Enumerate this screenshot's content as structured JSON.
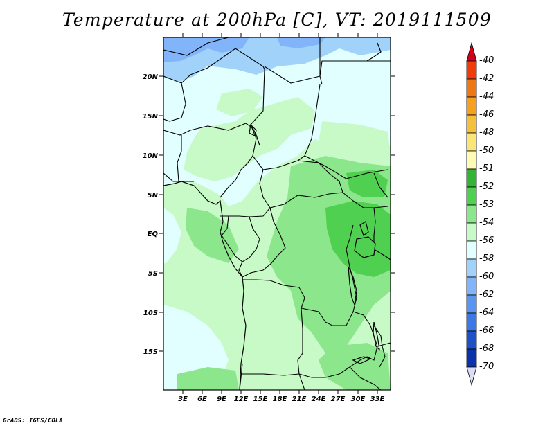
{
  "title": "Temperature at 200hPa [C], VT: 2019111509",
  "credit": "GrADS: IGES/COLA",
  "lat_labels": [
    "20N",
    "15N",
    "10N",
    "5N",
    "EQ",
    "5S",
    "10S",
    "15S"
  ],
  "lon_labels": [
    "3E",
    "6E",
    "9E",
    "12E",
    "15E",
    "18E",
    "21E",
    "24E",
    "27E",
    "30E",
    "33E"
  ],
  "colorbar": {
    "labels": [
      "-40",
      "-42",
      "-44",
      "-46",
      "-48",
      "-50",
      "-51",
      "-52",
      "-53",
      "-54",
      "-56",
      "-58",
      "-60",
      "-62",
      "-64",
      "-66",
      "-68",
      "-70"
    ],
    "colors": [
      "#d4001c",
      "#f03c0a",
      "#f07814",
      "#f5a020",
      "#f5c03c",
      "#fae678",
      "#fffab4",
      "#34b434",
      "#50d050",
      "#8ce68c",
      "#c8fac8",
      "#e1ffff",
      "#a0d2fa",
      "#82b4fa",
      "#5a96f0",
      "#3c78e6",
      "#1e50c8",
      "#0a32aa",
      "#000a78",
      "#dcdcf5"
    ]
  },
  "map_fields": {
    "light_green": "#c8fac8",
    "mid_green": "#8ce68c",
    "dark_green": "#50d050",
    "pale_cyan": "#e1ffff",
    "light_blue": "#a0d2fa",
    "blue": "#82b4fa"
  }
}
